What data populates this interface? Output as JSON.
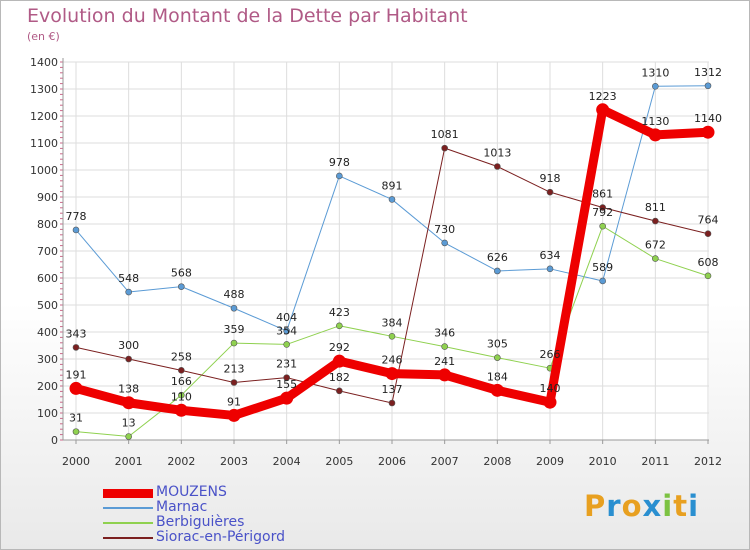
{
  "header": {
    "title": "Evolution du Montant de la Dette par Habitant",
    "subtitle": "(en €)"
  },
  "brand": {
    "letters": [
      "P",
      "r",
      "o",
      "x",
      "i",
      "t",
      "i"
    ],
    "colors": [
      "#e8a020",
      "#2a8fd0",
      "#e8a020",
      "#2a8fd0",
      "#7cc242",
      "#e8a020",
      "#2a8fd0"
    ]
  },
  "chart_data": {
    "type": "line",
    "title": "Evolution du Montant de la Dette par Habitant",
    "subtitle": "(en €)",
    "x": [
      "2000",
      "2001",
      "2002",
      "2003",
      "2004",
      "2005",
      "2006",
      "2007",
      "2008",
      "2009",
      "2010",
      "2011",
      "2012"
    ],
    "ylim": [
      0,
      1400
    ],
    "yticks": [
      0,
      100,
      200,
      300,
      400,
      500,
      600,
      700,
      800,
      900,
      1000,
      1100,
      1200,
      1300,
      1400
    ],
    "grid": true,
    "legend_position": "bottom-left",
    "series": [
      {
        "name": "MOUZENS",
        "color": "#ee0000",
        "width": 9,
        "values": [
          191,
          138,
          110,
          91,
          155,
          292,
          246,
          241,
          184,
          140,
          1223,
          1130,
          1140
        ]
      },
      {
        "name": "Marnac",
        "color": "#5b9bd5",
        "width": 1,
        "values": [
          778,
          548,
          568,
          488,
          404,
          978,
          891,
          730,
          626,
          634,
          589,
          1310,
          1312
        ]
      },
      {
        "name": "Berbiguières",
        "color": "#8fd14f",
        "width": 1,
        "values": [
          31,
          13,
          166,
          359,
          354,
          423,
          384,
          346,
          305,
          266,
          792,
          672,
          608
        ]
      },
      {
        "name": "Siorac-en-Périgord",
        "color": "#7b2020",
        "width": 1,
        "values": [
          343,
          300,
          258,
          213,
          231,
          182,
          137,
          1081,
          1013,
          918,
          861,
          811,
          764
        ]
      }
    ],
    "data_labels": [
      {
        "series": 0,
        "labels": [
          "191",
          "138",
          "110",
          "91",
          "155",
          "292",
          "246",
          "241",
          "184",
          "140",
          "1223",
          "1130",
          "1140"
        ]
      },
      {
        "series": 1,
        "labels": [
          "778",
          "548",
          "568",
          "488",
          "404",
          "978",
          "891",
          "730",
          "626",
          "634",
          "589",
          "1310",
          "1312"
        ]
      },
      {
        "series": 2,
        "labels": [
          "31",
          "13",
          "166",
          "359",
          "354",
          "423",
          "384",
          "346",
          "305",
          "266",
          "792",
          "672",
          "608"
        ]
      },
      {
        "series": 3,
        "labels": [
          "343",
          "300",
          "258",
          "213",
          "231",
          "182",
          "137",
          "1081",
          "1013",
          "918",
          "861",
          "811",
          "764"
        ]
      }
    ]
  }
}
